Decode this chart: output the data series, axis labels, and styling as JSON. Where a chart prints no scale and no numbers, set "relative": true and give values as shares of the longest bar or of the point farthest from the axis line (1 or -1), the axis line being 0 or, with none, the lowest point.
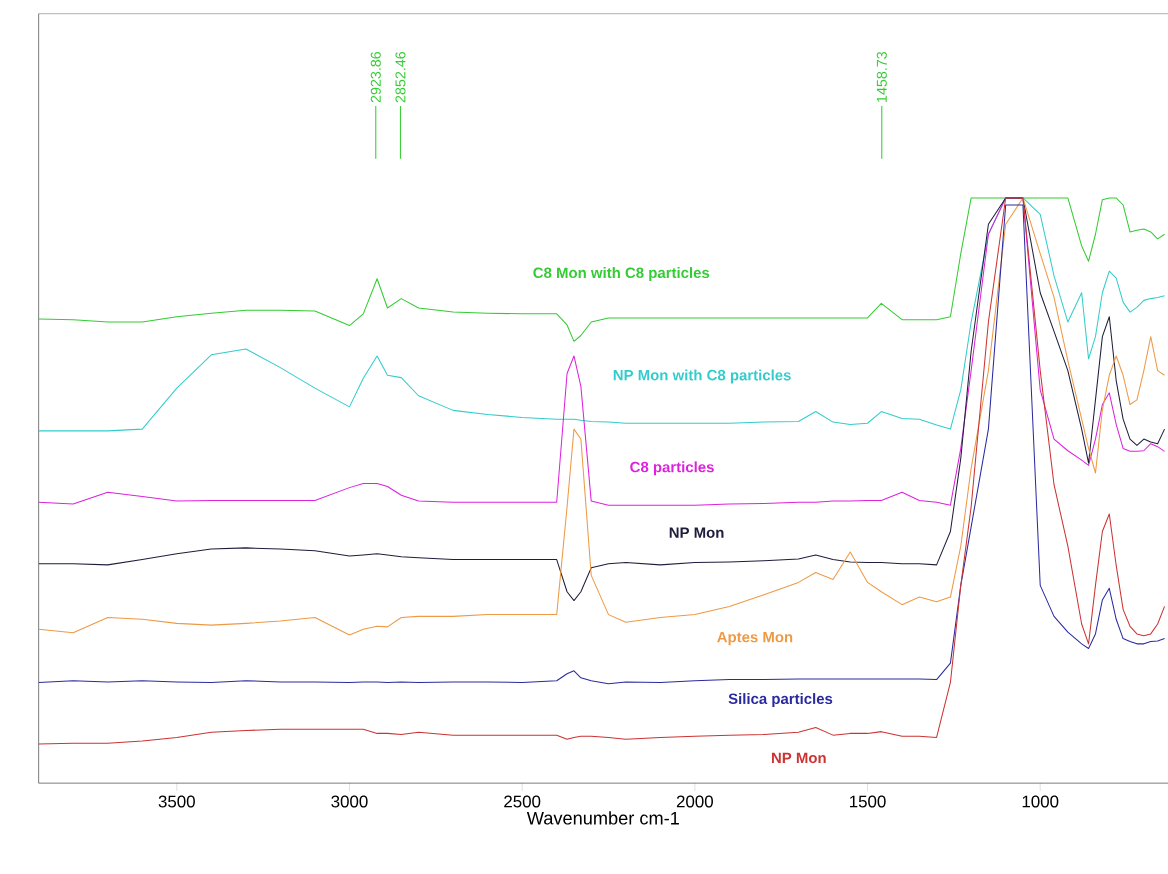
{
  "chart_data": {
    "type": "line",
    "relative": true,
    "xlabel": "Wavenumber cm-1",
    "xlim": [
      3900,
      630
    ],
    "xticks": [
      3500,
      3000,
      2500,
      2000,
      1500,
      1000
    ],
    "x": [
      3900,
      3800,
      3700,
      3600,
      3500,
      3400,
      3300,
      3200,
      3100,
      3000,
      2960,
      2920,
      2890,
      2850,
      2800,
      2700,
      2600,
      2500,
      2400,
      2370,
      2350,
      2330,
      2300,
      2250,
      2200,
      2100,
      2000,
      1900,
      1800,
      1700,
      1650,
      1600,
      1550,
      1500,
      1460,
      1400,
      1350,
      1300,
      1260,
      1230,
      1200,
      1150,
      1100,
      1050,
      1000,
      960,
      920,
      880,
      860,
      840,
      820,
      800,
      780,
      760,
      740,
      720,
      700,
      680,
      660,
      640
    ],
    "ref_lines": [
      {
        "axis": "x",
        "value": 2923.86,
        "label": "2923.86",
        "color": "#33cc33"
      },
      {
        "axis": "x",
        "value": 2852.46,
        "label": "2852.46",
        "color": "#33cc33"
      },
      {
        "axis": "x",
        "value": 1458.73,
        "label": "1458.73",
        "color": "#33cc33"
      }
    ],
    "series": [
      {
        "name": "C8 Mon with C8 particles",
        "color": "#33cc33",
        "values": [
          0.793,
          0.792,
          0.788,
          0.788,
          0.797,
          0.803,
          0.808,
          0.808,
          0.807,
          0.782,
          0.802,
          0.862,
          0.812,
          0.828,
          0.812,
          0.805,
          0.803,
          0.802,
          0.802,
          0.783,
          0.755,
          0.765,
          0.788,
          0.795,
          0.795,
          0.795,
          0.795,
          0.795,
          0.795,
          0.795,
          0.795,
          0.795,
          0.795,
          0.795,
          0.82,
          0.792,
          0.792,
          0.792,
          0.797,
          0.905,
          1,
          1,
          1,
          1,
          1,
          1,
          1,
          0.918,
          0.892,
          0.938,
          0.997,
          1,
          1,
          0.988,
          0.942,
          0.945,
          0.947,
          0.942,
          0.93,
          0.938
        ]
      },
      {
        "name": "NP Mon with C8 particles",
        "color": "#33cccc",
        "values": [
          0.602,
          0.602,
          0.602,
          0.605,
          0.675,
          0.732,
          0.742,
          0.71,
          0.675,
          0.643,
          0.692,
          0.73,
          0.697,
          0.693,
          0.662,
          0.637,
          0.63,
          0.625,
          0.622,
          0.622,
          0.622,
          0.62,
          0.618,
          0.617,
          0.615,
          0.615,
          0.615,
          0.615,
          0.617,
          0.618,
          0.635,
          0.617,
          0.613,
          0.615,
          0.635,
          0.623,
          0.622,
          0.612,
          0.605,
          0.672,
          0.788,
          0.938,
          1,
          1,
          0.972,
          0.867,
          0.788,
          0.838,
          0.725,
          0.763,
          0.838,
          0.875,
          0.863,
          0.822,
          0.805,
          0.813,
          0.825,
          0.828,
          0.83,
          0.833
        ]
      },
      {
        "name": "C8 particles",
        "color": "#dd22dd",
        "values": [
          0.48,
          0.477,
          0.497,
          0.49,
          0.482,
          0.483,
          0.483,
          0.483,
          0.483,
          0.505,
          0.512,
          0.512,
          0.507,
          0.492,
          0.482,
          0.48,
          0.48,
          0.48,
          0.48,
          0.7,
          0.73,
          0.678,
          0.482,
          0.475,
          0.475,
          0.475,
          0.475,
          0.477,
          0.478,
          0.48,
          0.48,
          0.482,
          0.482,
          0.483,
          0.483,
          0.497,
          0.483,
          0.48,
          0.475,
          0.572,
          0.705,
          0.938,
          1,
          1,
          0.672,
          0.588,
          0.568,
          0.552,
          0.543,
          0.588,
          0.647,
          0.667,
          0.613,
          0.572,
          0.567,
          0.567,
          0.568,
          0.58,
          0.575,
          0.567
        ]
      },
      {
        "name": "NP Mon",
        "color": "#1e1e3c",
        "values": [
          0.375,
          0.375,
          0.373,
          0.382,
          0.392,
          0.4,
          0.402,
          0.4,
          0.397,
          0.388,
          0.39,
          0.392,
          0.39,
          0.387,
          0.385,
          0.382,
          0.382,
          0.382,
          0.382,
          0.327,
          0.312,
          0.327,
          0.368,
          0.375,
          0.377,
          0.373,
          0.377,
          0.378,
          0.38,
          0.383,
          0.39,
          0.382,
          0.378,
          0.377,
          0.377,
          0.375,
          0.375,
          0.373,
          0.43,
          0.555,
          0.738,
          0.955,
          1,
          1,
          0.838,
          0.772,
          0.705,
          0.605,
          0.547,
          0.655,
          0.763,
          0.797,
          0.688,
          0.622,
          0.588,
          0.577,
          0.588,
          0.583,
          0.58,
          0.605
        ]
      },
      {
        "name": "Aptes Mon",
        "color": "#ee9944",
        "values": [
          0.263,
          0.257,
          0.283,
          0.28,
          0.273,
          0.27,
          0.273,
          0.277,
          0.283,
          0.253,
          0.263,
          0.268,
          0.267,
          0.283,
          0.285,
          0.285,
          0.288,
          0.288,
          0.288,
          0.472,
          0.605,
          0.588,
          0.355,
          0.288,
          0.275,
          0.283,
          0.288,
          0.302,
          0.322,
          0.343,
          0.36,
          0.348,
          0.395,
          0.343,
          0.327,
          0.305,
          0.318,
          0.31,
          0.318,
          0.405,
          0.538,
          0.705,
          0.955,
          1,
          0.905,
          0.83,
          0.722,
          0.622,
          0.572,
          0.53,
          0.638,
          0.697,
          0.73,
          0.697,
          0.647,
          0.655,
          0.705,
          0.763,
          0.705,
          0.697
        ]
      },
      {
        "name": "Silica particles",
        "color": "#2a2aa0",
        "values": [
          0.172,
          0.175,
          0.173,
          0.175,
          0.173,
          0.172,
          0.175,
          0.173,
          0.173,
          0.172,
          0.173,
          0.173,
          0.172,
          0.173,
          0.172,
          0.173,
          0.173,
          0.172,
          0.175,
          0.187,
          0.192,
          0.18,
          0.175,
          0.17,
          0.173,
          0.172,
          0.175,
          0.177,
          0.177,
          0.178,
          0.178,
          0.178,
          0.178,
          0.178,
          0.178,
          0.178,
          0.178,
          0.177,
          0.205,
          0.338,
          0.438,
          0.605,
          0.988,
          0.988,
          0.338,
          0.285,
          0.258,
          0.238,
          0.23,
          0.255,
          0.313,
          0.333,
          0.28,
          0.247,
          0.242,
          0.238,
          0.238,
          0.242,
          0.243,
          0.247
        ]
      },
      {
        "name": "NP Mon",
        "color": "#cc3333",
        "values": [
          0.067,
          0.068,
          0.068,
          0.072,
          0.078,
          0.087,
          0.09,
          0.092,
          0.092,
          0.092,
          0.092,
          0.085,
          0.085,
          0.083,
          0.087,
          0.082,
          0.082,
          0.082,
          0.082,
          0.075,
          0.078,
          0.08,
          0.08,
          0.078,
          0.075,
          0.078,
          0.08,
          0.082,
          0.083,
          0.087,
          0.095,
          0.082,
          0.085,
          0.085,
          0.088,
          0.08,
          0.08,
          0.078,
          0.172,
          0.338,
          0.472,
          0.788,
          1,
          1,
          0.705,
          0.51,
          0.405,
          0.272,
          0.238,
          0.338,
          0.43,
          0.46,
          0.372,
          0.297,
          0.268,
          0.255,
          0.252,
          0.255,
          0.272,
          0.302
        ]
      }
    ]
  }
}
